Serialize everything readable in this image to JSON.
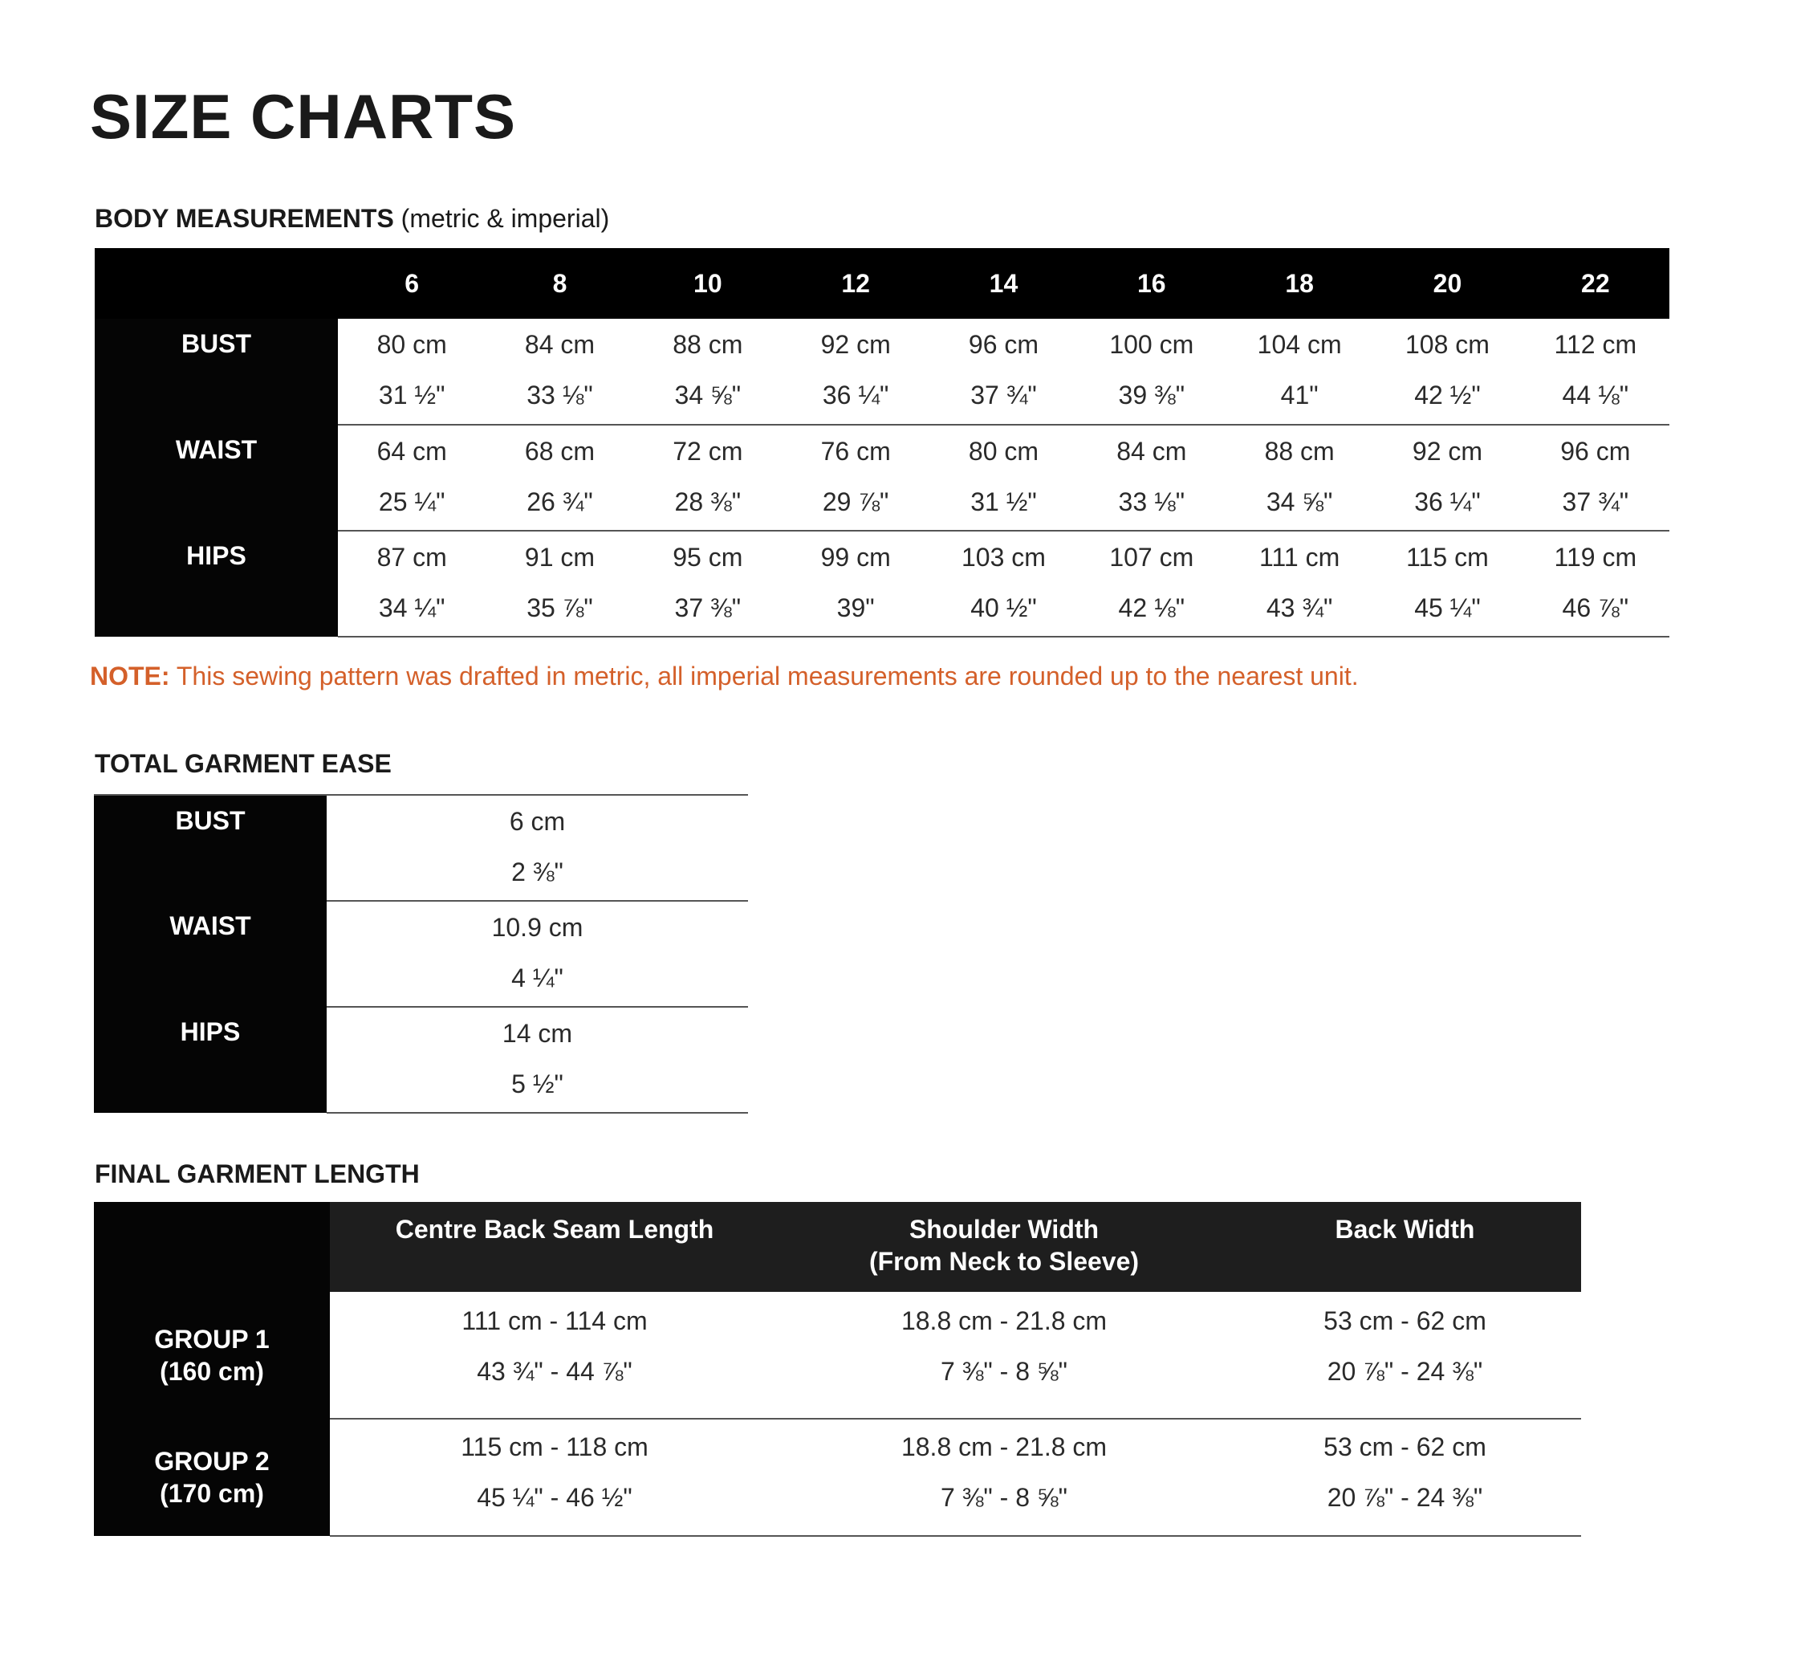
{
  "title": "SIZE CHARTS",
  "body_measurements": {
    "heading": "BODY MEASUREMENTS",
    "subheading": "(metric & imperial)",
    "sizes": [
      "6",
      "8",
      "10",
      "12",
      "14",
      "16",
      "18",
      "20",
      "22"
    ],
    "rows": [
      {
        "label": "BUST",
        "cm": [
          "80 cm",
          "84 cm",
          "88 cm",
          "92 cm",
          "96 cm",
          "100 cm",
          "104 cm",
          "108 cm",
          "112 cm"
        ],
        "in": [
          "31 ½\"",
          "33 ⅛\"",
          "34 ⅝\"",
          "36 ¼\"",
          "37 ¾\"",
          "39 ⅜\"",
          "41\"",
          "42 ½\"",
          "44 ⅛\""
        ]
      },
      {
        "label": "WAIST",
        "cm": [
          "64 cm",
          "68 cm",
          "72 cm",
          "76 cm",
          "80 cm",
          "84 cm",
          "88 cm",
          "92 cm",
          "96 cm"
        ],
        "in": [
          "25 ¼\"",
          "26 ¾\"",
          "28 ⅜\"",
          "29 ⅞\"",
          "31 ½\"",
          "33 ⅛\"",
          "34 ⅝\"",
          "36 ¼\"",
          "37 ¾\""
        ]
      },
      {
        "label": "HIPS",
        "cm": [
          "87 cm",
          "91 cm",
          "95 cm",
          "99 cm",
          "103 cm",
          "107 cm",
          "111 cm",
          "115 cm",
          "119 cm"
        ],
        "in": [
          "34 ¼\"",
          "35 ⅞\"",
          "37 ⅜\"",
          "39\"",
          "40 ½\"",
          "42 ⅛\"",
          "43 ¾\"",
          "45 ¼\"",
          "46 ⅞\""
        ]
      }
    ]
  },
  "note": {
    "label": "NOTE:",
    "text": " This sewing pattern was drafted in metric, all imperial measurements are rounded up to the nearest unit.",
    "color": "#d4602a"
  },
  "garment_ease": {
    "heading": "TOTAL GARMENT EASE",
    "rows": [
      {
        "label": "BUST",
        "cm": "6 cm",
        "in": "2 ⅜\""
      },
      {
        "label": "WAIST",
        "cm": "10.9 cm",
        "in": "4 ¼\""
      },
      {
        "label": "HIPS",
        "cm": "14 cm",
        "in": "5 ½\""
      }
    ]
  },
  "final_length": {
    "heading": "FINAL GARMENT LENGTH",
    "columns": [
      {
        "line1": "Centre Back Seam Length",
        "line2": ""
      },
      {
        "line1": "Shoulder Width",
        "line2": "(From Neck to Sleeve)"
      },
      {
        "line1": "Back Width",
        "line2": ""
      }
    ],
    "rows": [
      {
        "label1": "GROUP 1",
        "label2": "(160 cm)",
        "cm": [
          "111 cm - 114 cm",
          "18.8 cm - 21.8 cm",
          "53 cm - 62 cm"
        ],
        "in": [
          "43 ¾\" - 44 ⅞\"",
          "7 ⅜\" - 8 ⅝\"",
          "20 ⅞\" - 24 ⅜\""
        ]
      },
      {
        "label1": "GROUP 2",
        "label2": "(170 cm)",
        "cm": [
          "115 cm - 118 cm",
          "18.8 cm - 21.8 cm",
          "53 cm - 62 cm"
        ],
        "in": [
          "45 ¼\" - 46 ½\"",
          "7 ⅜\" - 8 ⅝\"",
          "20 ⅞\" - 24 ⅜\""
        ]
      }
    ]
  }
}
